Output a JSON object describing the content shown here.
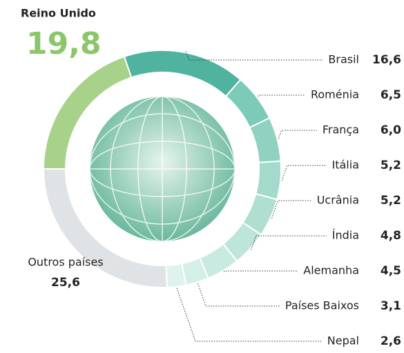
{
  "chart_data": {
    "type": "pie",
    "categories": [
      "Reino Unido",
      "Brasil",
      "Roménia",
      "França",
      "Itália",
      "Ucrânia",
      "Índia",
      "Alemanha",
      "Países Baixos",
      "Nepal",
      "Outros países"
    ],
    "values": [
      19.8,
      16.6,
      6.5,
      6.0,
      5.2,
      5.2,
      4.8,
      4.5,
      3.1,
      2.6,
      25.6
    ],
    "value_labels": [
      "19,8",
      "16,6",
      "6,5",
      "6,0",
      "5,2",
      "5,2",
      "4,8",
      "4,5",
      "3,1",
      "2,6",
      "25,6"
    ],
    "colors": [
      "#a8d18a",
      "#4fb3a0",
      "#7ccab8",
      "#8fd2c0",
      "#a3dacb",
      "#b0dfd2",
      "#bde5da",
      "#c9eae0",
      "#d4efe7",
      "#def3ed",
      "#e0e3e6"
    ]
  }
}
